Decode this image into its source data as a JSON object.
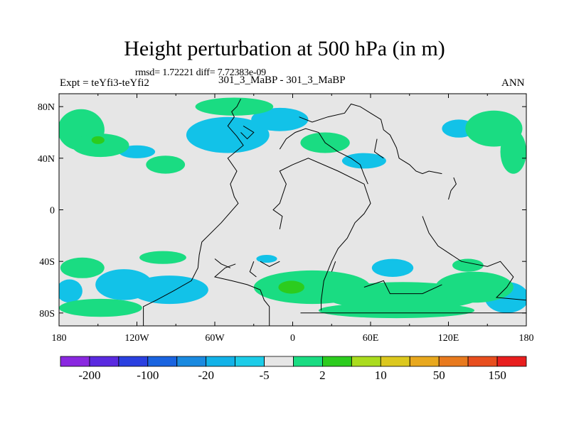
{
  "title": "Height perturbation at 500 hPa (in m)",
  "stats": "rmsd= 1.72221 diff= 7.72383e-09",
  "left_label": "Expt = teYfi3-teYfi2",
  "center_label": "301_3_MaBP - 301_3_MaBP",
  "right_label": "ANN",
  "map": {
    "projection": "cylindrical-equidistant",
    "lon_range": [
      -180,
      180
    ],
    "lat_range": [
      -90,
      90
    ],
    "background_color": "#e6e6e6",
    "coastline_color": "#000000",
    "y_ticks": [
      {
        "value": 80,
        "label": "80N"
      },
      {
        "value": 40,
        "label": "40N"
      },
      {
        "value": 0,
        "label": "0"
      },
      {
        "value": -40,
        "label": "40S"
      },
      {
        "value": -80,
        "label": "80S"
      }
    ],
    "x_ticks": [
      {
        "value": -180,
        "label": "180"
      },
      {
        "value": -120,
        "label": "120W"
      },
      {
        "value": -60,
        "label": "60W"
      },
      {
        "value": 0,
        "label": "0"
      },
      {
        "value": 60,
        "label": "60E"
      },
      {
        "value": 120,
        "label": "120E"
      },
      {
        "value": 180,
        "label": "180"
      }
    ]
  },
  "colorbar": {
    "colors": [
      "#8a28e0",
      "#5a2ae0",
      "#2a40e0",
      "#1a64e0",
      "#1a8ae0",
      "#12b2e8",
      "#1ccce8",
      "#e6e6e6",
      "#1adc82",
      "#2ccc1e",
      "#aadc1e",
      "#dcc81e",
      "#e8a81e",
      "#e87a1e",
      "#e84e1e",
      "#e81e1e"
    ],
    "labels": [
      {
        "index": 1,
        "text": "-200"
      },
      {
        "index": 3,
        "text": "-100"
      },
      {
        "index": 5,
        "text": "-20"
      },
      {
        "index": 7,
        "text": "-5"
      },
      {
        "index": 9,
        "text": "2"
      },
      {
        "index": 11,
        "text": "10"
      },
      {
        "index": 13,
        "text": "50"
      },
      {
        "index": 15,
        "text": "150"
      }
    ]
  },
  "field_regions": [
    {
      "level": "cyan",
      "lon": -120,
      "lat": 45,
      "rlon": 14,
      "rlat": 5
    },
    {
      "level": "cyan",
      "lon": -50,
      "lat": 58,
      "rlon": 32,
      "rlat": 14
    },
    {
      "level": "cyan",
      "lon": -10,
      "lat": 70,
      "rlon": 22,
      "rlat": 9
    },
    {
      "level": "cyan",
      "lon": 55,
      "lat": 38,
      "rlon": 17,
      "rlat": 6
    },
    {
      "level": "cyan",
      "lon": 128,
      "lat": 63,
      "rlon": 13,
      "rlat": 7
    },
    {
      "level": "cyan",
      "lon": -130,
      "lat": -58,
      "rlon": 22,
      "rlat": 12
    },
    {
      "level": "cyan",
      "lon": -95,
      "lat": -62,
      "rlon": 30,
      "rlat": 11
    },
    {
      "level": "cyan",
      "lon": -172,
      "lat": -63,
      "rlon": 10,
      "rlat": 9
    },
    {
      "level": "cyan",
      "lon": 77,
      "lat": -45,
      "rlon": 16,
      "rlat": 7
    },
    {
      "level": "cyan",
      "lon": 165,
      "lat": -68,
      "rlon": 17,
      "rlat": 12
    },
    {
      "level": "cyan",
      "lon": -20,
      "lat": -38,
      "rlon": 8,
      "rlat": 3
    },
    {
      "level": "green",
      "lon": -163,
      "lat": 62,
      "rlon": 18,
      "rlat": 16
    },
    {
      "level": "green",
      "lon": -148,
      "lat": 50,
      "rlon": 22,
      "rlat": 9
    },
    {
      "level": "green",
      "lon": -98,
      "lat": 35,
      "rlon": 15,
      "rlat": 7
    },
    {
      "level": "green",
      "lon": -45,
      "lat": 80,
      "rlon": 30,
      "rlat": 7
    },
    {
      "level": "green",
      "lon": 155,
      "lat": 63,
      "rlon": 22,
      "rlat": 14
    },
    {
      "level": "green",
      "lon": 170,
      "lat": 45,
      "rlon": 10,
      "rlat": 17
    },
    {
      "level": "green",
      "lon": 25,
      "lat": 52,
      "rlon": 19,
      "rlat": 8
    },
    {
      "level": "green",
      "lon": -162,
      "lat": -45,
      "rlon": 17,
      "rlat": 8
    },
    {
      "level": "green",
      "lon": -148,
      "lat": -76,
      "rlon": 32,
      "rlat": 7
    },
    {
      "level": "green",
      "lon": -100,
      "lat": -37,
      "rlon": 18,
      "rlat": 5
    },
    {
      "level": "green",
      "lon": 15,
      "lat": -60,
      "rlon": 45,
      "rlat": 13
    },
    {
      "level": "green",
      "lon": 85,
      "lat": -67,
      "rlon": 60,
      "rlat": 11
    },
    {
      "level": "green",
      "lon": 80,
      "lat": -78,
      "rlon": 60,
      "rlat": 6
    },
    {
      "level": "green",
      "lon": 140,
      "lat": -60,
      "rlon": 30,
      "rlat": 12
    },
    {
      "level": "green",
      "lon": 135,
      "lat": -43,
      "rlon": 12,
      "rlat": 5
    },
    {
      "level": "bright-green",
      "lon": -150,
      "lat": 54,
      "rlon": 5,
      "rlat": 3
    },
    {
      "level": "bright-green",
      "lon": -1,
      "lat": -60,
      "rlon": 10,
      "rlat": 5
    }
  ],
  "level_colors": {
    "cyan": "#12c2e8",
    "green": "#1adc82",
    "bright-green": "#2ccc1e"
  },
  "coastlines": [
    [
      [
        -115,
        -90
      ],
      [
        -115,
        -75
      ],
      [
        -105,
        -70
      ],
      [
        -92,
        -63
      ],
      [
        -78,
        -55
      ],
      [
        -73,
        -45
      ],
      [
        -72,
        -35
      ],
      [
        -70,
        -25
      ],
      [
        -55,
        -10
      ],
      [
        -42,
        5
      ],
      [
        -45,
        10
      ],
      [
        -48,
        20
      ],
      [
        -43,
        30
      ],
      [
        -50,
        40
      ],
      [
        -38,
        50
      ],
      [
        -43,
        57
      ],
      [
        -50,
        65
      ],
      [
        -45,
        72
      ],
      [
        -47,
        76
      ],
      [
        -43,
        80
      ],
      [
        -40,
        86
      ]
    ],
    [
      [
        -18,
        -90
      ],
      [
        -18,
        -75
      ],
      [
        -22,
        -70
      ],
      [
        -25,
        -62
      ],
      [
        -35,
        -58
      ],
      [
        -47,
        -55
      ],
      [
        -60,
        -52
      ],
      [
        -52,
        -45
      ],
      [
        -44,
        -42
      ]
    ],
    [
      [
        6,
        -80
      ],
      [
        180,
        -80
      ]
    ],
    [
      [
        22,
        -78
      ],
      [
        22,
        -70
      ],
      [
        24,
        -55
      ],
      [
        30,
        -40
      ],
      [
        35,
        -30
      ],
      [
        42,
        -22
      ],
      [
        48,
        -10
      ],
      [
        55,
        -3
      ],
      [
        60,
        5
      ],
      [
        55,
        20
      ],
      [
        35,
        30
      ],
      [
        12,
        40
      ],
      [
        0,
        35
      ],
      [
        -10,
        30
      ],
      [
        -5,
        20
      ],
      [
        -10,
        5
      ],
      [
        -15,
        0
      ],
      [
        -8,
        -5
      ],
      [
        -10,
        -15
      ]
    ],
    [
      [
        5,
        72
      ],
      [
        15,
        68
      ],
      [
        27,
        72
      ],
      [
        40,
        75
      ],
      [
        45,
        82
      ],
      [
        52,
        80
      ],
      [
        60,
        75
      ],
      [
        68,
        70
      ],
      [
        70,
        62
      ],
      [
        75,
        58
      ],
      [
        78,
        52
      ],
      [
        80,
        48
      ],
      [
        82,
        40
      ],
      [
        90,
        35
      ],
      [
        95,
        30
      ],
      [
        100,
        28
      ],
      [
        105,
        30
      ],
      [
        115,
        28
      ]
    ],
    [
      [
        -10,
        47
      ],
      [
        -5,
        55
      ],
      [
        2,
        60
      ],
      [
        10,
        63
      ],
      [
        20,
        60
      ],
      [
        25,
        52
      ],
      [
        35,
        45
      ],
      [
        45,
        40
      ],
      [
        52,
        35
      ],
      [
        55,
        27
      ],
      [
        58,
        20
      ]
    ],
    [
      [
        100,
        -5
      ],
      [
        105,
        -18
      ],
      [
        112,
        -28
      ],
      [
        130,
        -40
      ],
      [
        150,
        -44
      ],
      [
        160,
        -40
      ],
      [
        170,
        -52
      ],
      [
        165,
        -60
      ],
      [
        157,
        -68
      ],
      [
        180,
        -70
      ]
    ],
    [
      [
        -60,
        -38
      ],
      [
        -55,
        -42
      ],
      [
        -48,
        -45
      ]
    ],
    [
      [
        -25,
        -40
      ],
      [
        -18,
        -44
      ],
      [
        -10,
        -40
      ]
    ],
    [
      [
        33,
        -40
      ],
      [
        30,
        -48
      ]
    ],
    [
      [
        55,
        -60
      ],
      [
        70,
        -55
      ],
      [
        75,
        -65
      ],
      [
        100,
        -65
      ],
      [
        115,
        -58
      ]
    ],
    [
      [
        120,
        8
      ],
      [
        122,
        15
      ],
      [
        126,
        20
      ],
      [
        124,
        25
      ]
    ],
    [
      [
        -30,
        -40
      ],
      [
        -33,
        -48
      ],
      [
        -28,
        -52
      ]
    ],
    [
      [
        -40,
        60
      ],
      [
        -35,
        55
      ],
      [
        -30,
        60
      ],
      [
        -38,
        65
      ]
    ],
    [
      [
        65,
        55
      ],
      [
        63,
        45
      ],
      [
        70,
        40
      ]
    ]
  ]
}
